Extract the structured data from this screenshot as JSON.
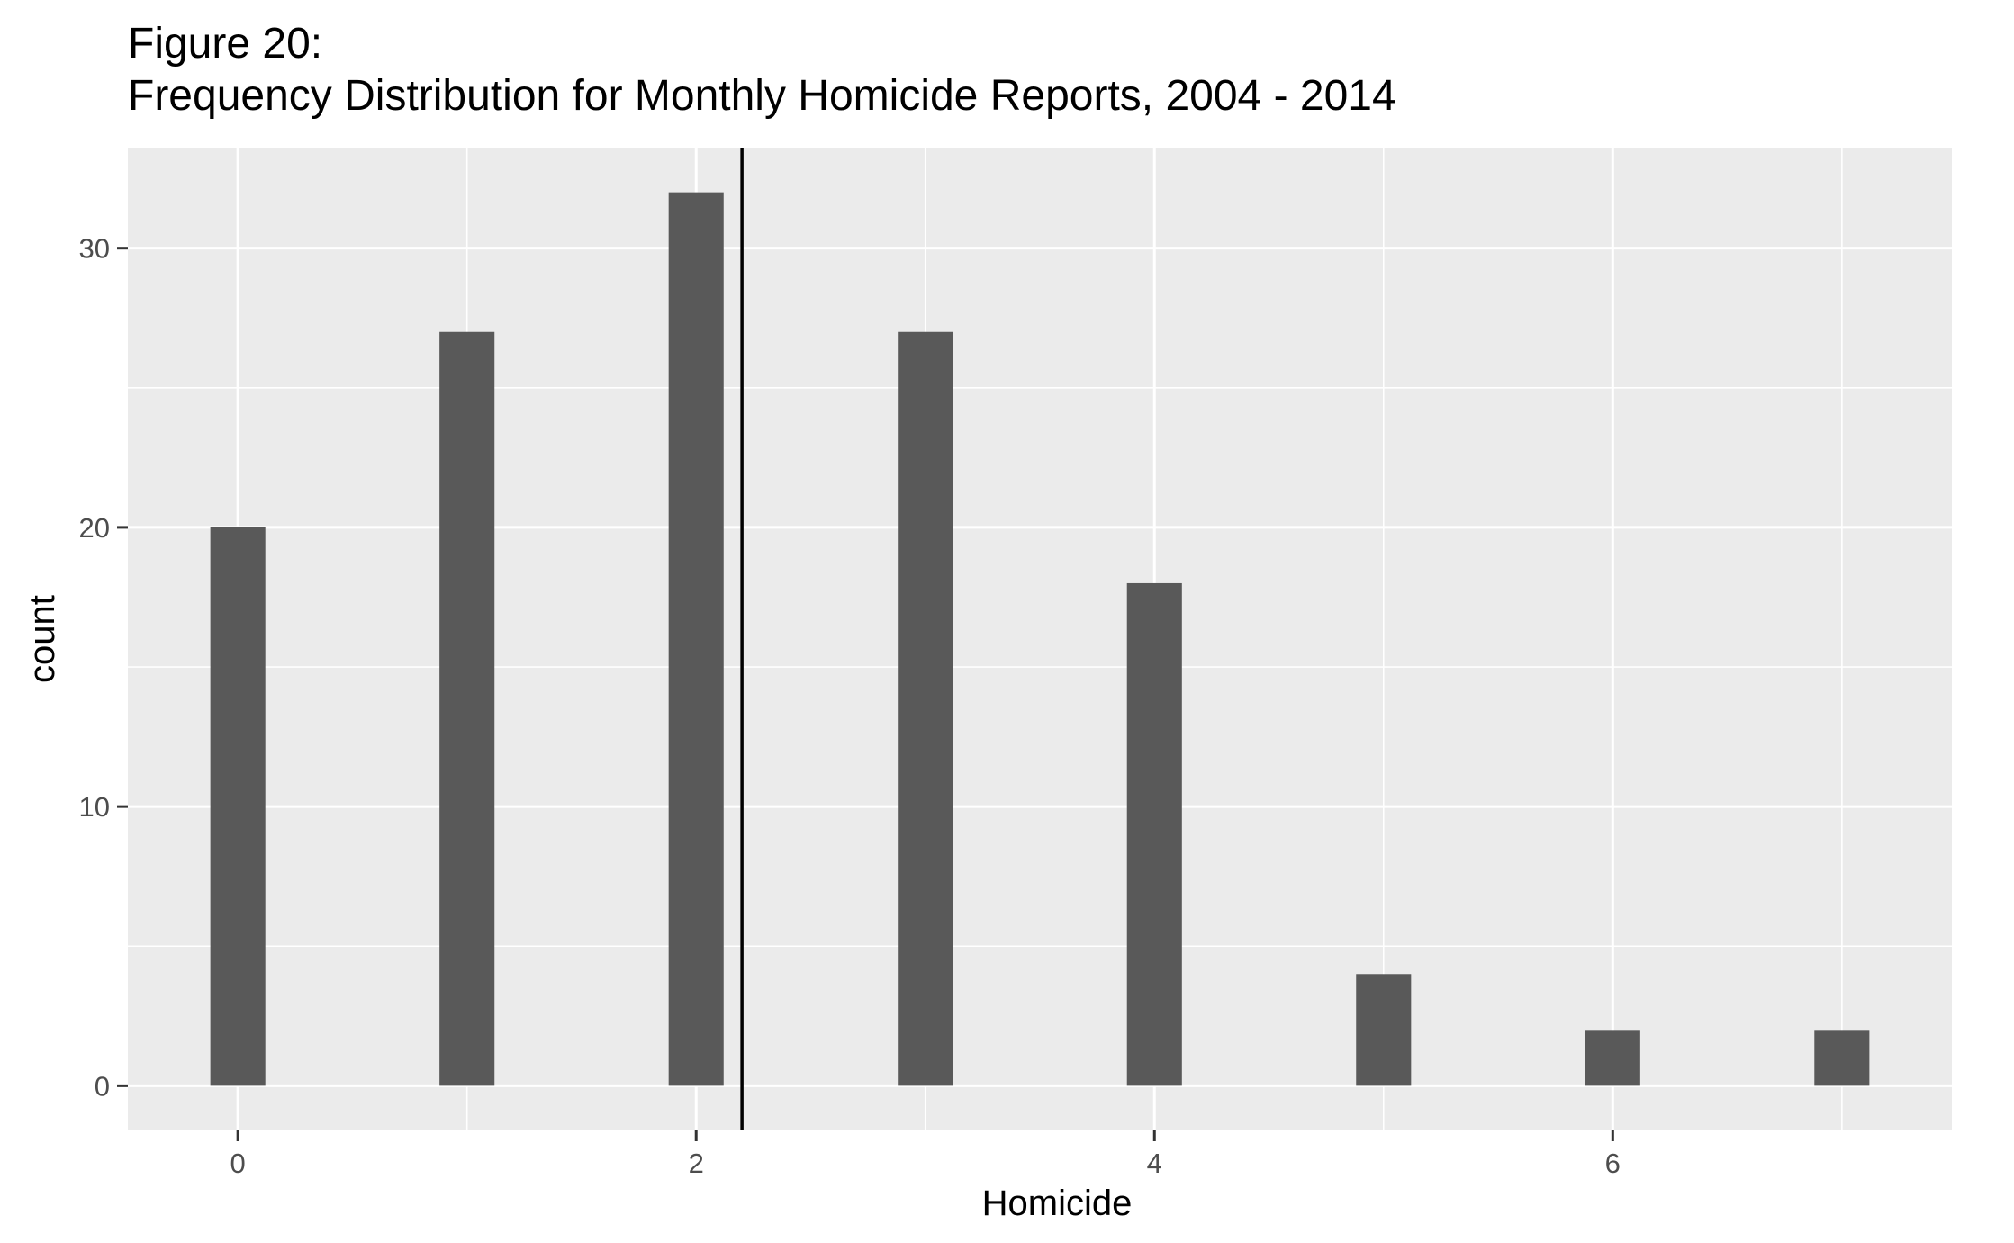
{
  "chart_data": {
    "type": "bar",
    "title": "Figure 20:",
    "subtitle": "Frequency Distribution for Monthly Homicide Reports, 2004 - 2014",
    "xlabel": "Homicide",
    "ylabel": "count",
    "x": [
      0,
      1,
      2,
      3,
      4,
      5,
      6,
      7
    ],
    "values": [
      20,
      27,
      32,
      27,
      18,
      4,
      2,
      2
    ],
    "bin_width": 0.24,
    "xlim": [
      -0.48,
      7.48
    ],
    "ylim": [
      -1.6,
      33.6
    ],
    "x_ticks": [
      0,
      2,
      4,
      6
    ],
    "y_ticks": [
      0,
      10,
      20,
      30
    ],
    "reference_line": {
      "x": 2.2
    },
    "grid": true,
    "legend": "none",
    "colors": {
      "bar": "#595959",
      "panel": "#ebebeb",
      "grid": "#ffffff",
      "reference_line": "#000000",
      "tick_label": "#4d4d4d"
    }
  }
}
